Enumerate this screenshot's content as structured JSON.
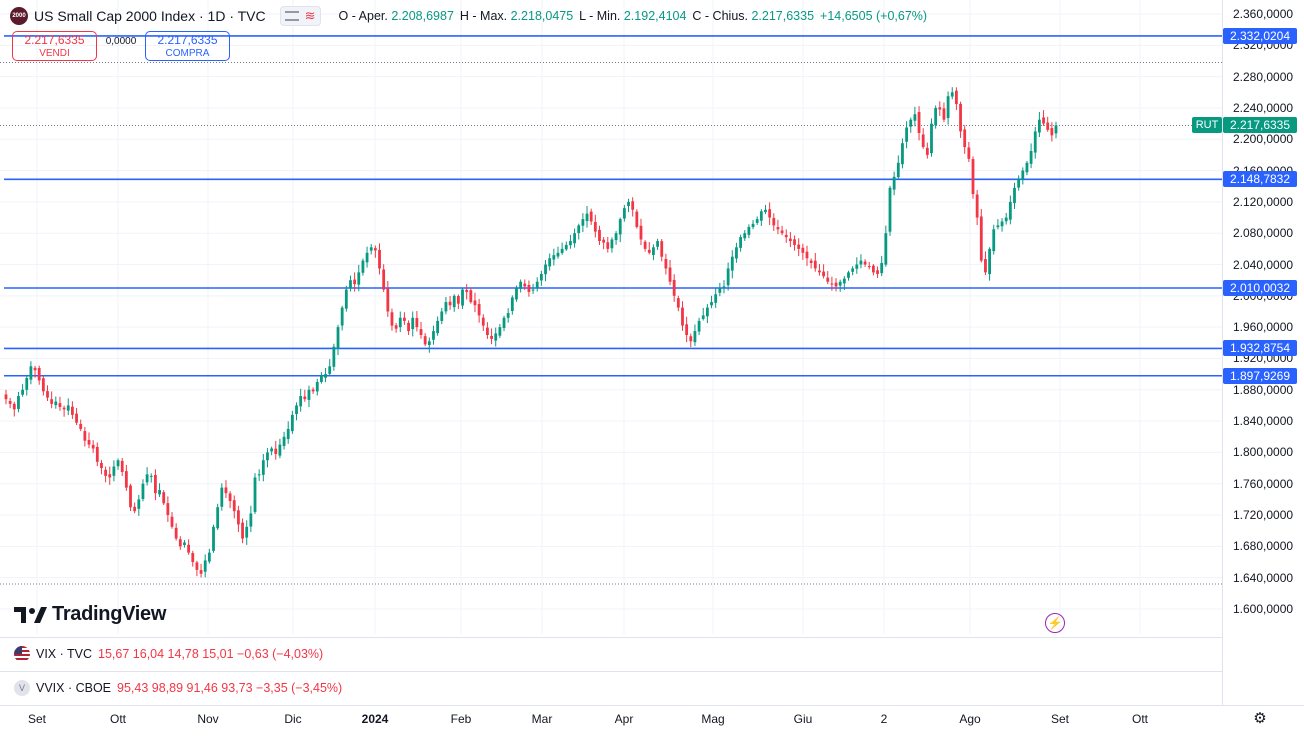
{
  "header": {
    "logo_text": "2000",
    "title": "US Small Cap 2000 Index · 1D · TVC",
    "ohlc": [
      {
        "key": "O - Aper.",
        "value": "2.208,6987"
      },
      {
        "key": "H - Max.",
        "value": "2.218,0475"
      },
      {
        "key": "L - Min.",
        "value": "2.192,4104"
      },
      {
        "key": "C - Chius.",
        "value": "2.217,6335"
      },
      {
        "key": "",
        "value": "+14,6505 (+0,67%)"
      }
    ]
  },
  "trade": {
    "sell_price": "2.217,6335",
    "sell_label": "VENDI",
    "spread": "0,0000",
    "buy_price": "2.217,6335",
    "buy_label": "COMPRA"
  },
  "branding": {
    "name": "TradingView"
  },
  "indicators": [
    {
      "name": "VIX · TVC",
      "values": "15,67  16,04  14,78  15,01  −0,63 (−4,03%)",
      "icon": "us-flag-icon"
    },
    {
      "name": "VVIX · CBOE",
      "values": "95,43  98,89  91,46  93,73  −3,35 (−3,45%)",
      "icon": "vv-icon"
    }
  ],
  "price_axis": {
    "labels": [
      "2.360,0000",
      "2.320,0000",
      "2.280,0000",
      "2.240,0000",
      "2.200,0000",
      "2.160,0000",
      "2.120,0000",
      "2.080,0000",
      "2.040,0000",
      "2.000,0000",
      "1.960,0000",
      "1.920,0000",
      "1.880,0000",
      "1.840,0000",
      "1.800,0000",
      "1.760,0000",
      "1.720,0000",
      "1.680,0000",
      "1.640,0000",
      "1.600,0000"
    ],
    "current_symbol": "RUT",
    "current_price": "2.217,6335"
  },
  "time_axis": {
    "labels": [
      {
        "text": "Set",
        "bold": false
      },
      {
        "text": "Ott",
        "bold": false
      },
      {
        "text": "Nov",
        "bold": false
      },
      {
        "text": "Dic",
        "bold": false
      },
      {
        "text": "2024",
        "bold": true
      },
      {
        "text": "Feb",
        "bold": false
      },
      {
        "text": "Mar",
        "bold": false
      },
      {
        "text": "Apr",
        "bold": false
      },
      {
        "text": "Mag",
        "bold": false
      },
      {
        "text": "Giu",
        "bold": false
      },
      {
        "text": "2",
        "bold": false
      },
      {
        "text": "Ago",
        "bold": false
      },
      {
        "text": "Set",
        "bold": false
      },
      {
        "text": "Ott",
        "bold": false
      }
    ]
  },
  "colors": {
    "up": "#089981",
    "down": "#f23645",
    "level_line": "#2962ff",
    "grid": "#f0f3fa"
  },
  "chart_data": {
    "type": "candlestick",
    "title": "US Small Cap 2000 Index · 1D · TVC",
    "ylim": [
      1590,
      2375
    ],
    "grid": true,
    "horizontal_levels": [
      {
        "value": 2332.0204,
        "label": "2.332,0204"
      },
      {
        "value": 2148.7832,
        "label": "2.148,7832"
      },
      {
        "value": 2010.0032,
        "label": "2.010,0032"
      },
      {
        "value": 1932.8754,
        "label": "1.932,8754"
      },
      {
        "value": 1897.9269,
        "label": "1.897,9269"
      }
    ],
    "dotted_levels": [
      2298.0,
      2217.6335,
      1632.0
    ],
    "close_series": [
      1868,
      1862,
      1855,
      1872,
      1880,
      1895,
      1910,
      1905,
      1892,
      1878,
      1870,
      1862,
      1865,
      1858,
      1855,
      1860,
      1848,
      1838,
      1830,
      1815,
      1810,
      1805,
      1788,
      1780,
      1770,
      1768,
      1782,
      1790,
      1775,
      1755,
      1730,
      1725,
      1740,
      1760,
      1772,
      1770,
      1748,
      1752,
      1735,
      1720,
      1705,
      1690,
      1680,
      1685,
      1672,
      1660,
      1650,
      1645,
      1662,
      1672,
      1705,
      1730,
      1755,
      1748,
      1738,
      1725,
      1708,
      1690,
      1705,
      1722,
      1768,
      1772,
      1790,
      1800,
      1805,
      1798,
      1810,
      1820,
      1830,
      1848,
      1860,
      1872,
      1868,
      1880,
      1878,
      1890,
      1898,
      1900,
      1910,
      1935,
      1960,
      1985,
      2008,
      2020,
      2015,
      2030,
      2045,
      2055,
      2062,
      2058,
      2035,
      2008,
      1980,
      1962,
      1958,
      1972,
      1968,
      1955,
      1972,
      1960,
      1950,
      1938,
      1942,
      1955,
      1968,
      1980,
      1992,
      1988,
      2000,
      1990,
      2008,
      2005,
      1992,
      1988,
      1975,
      1962,
      1950,
      1945,
      1952,
      1960,
      1972,
      1978,
      1998,
      2010,
      2018,
      2012,
      2005,
      2008,
      2018,
      2028,
      2040,
      2048,
      2052,
      2055,
      2060,
      2065,
      2070,
      2080,
      2090,
      2098,
      2105,
      2095,
      2082,
      2070,
      2068,
      2060,
      2072,
      2080,
      2098,
      2112,
      2120,
      2110,
      2088,
      2072,
      2060,
      2055,
      2062,
      2070,
      2050,
      2035,
      2018,
      2000,
      1985,
      1962,
      1950,
      1942,
      1955,
      1968,
      1975,
      1985,
      1992,
      2002,
      2010,
      2012,
      2035,
      2050,
      2062,
      2075,
      2080,
      2088,
      2092,
      2098,
      2108,
      2110,
      2100,
      2090,
      2085,
      2080,
      2075,
      2070,
      2065,
      2060,
      2055,
      2048,
      2042,
      2035,
      2030,
      2025,
      2018,
      2015,
      2012,
      2018,
      2022,
      2030,
      2035,
      2040,
      2045,
      2040,
      2038,
      2030,
      2028,
      2042,
      2080,
      2138,
      2152,
      2170,
      2195,
      2215,
      2225,
      2232,
      2208,
      2190,
      2180,
      2220,
      2240,
      2238,
      2225,
      2255,
      2260,
      2245,
      2210,
      2190,
      2175,
      2130,
      2100,
      2045,
      2030,
      2060,
      2085,
      2090,
      2095,
      2100,
      2120,
      2138,
      2150,
      2160,
      2170,
      2185,
      2210,
      2225,
      2220,
      2212,
      2205,
      2217.6335
    ]
  }
}
